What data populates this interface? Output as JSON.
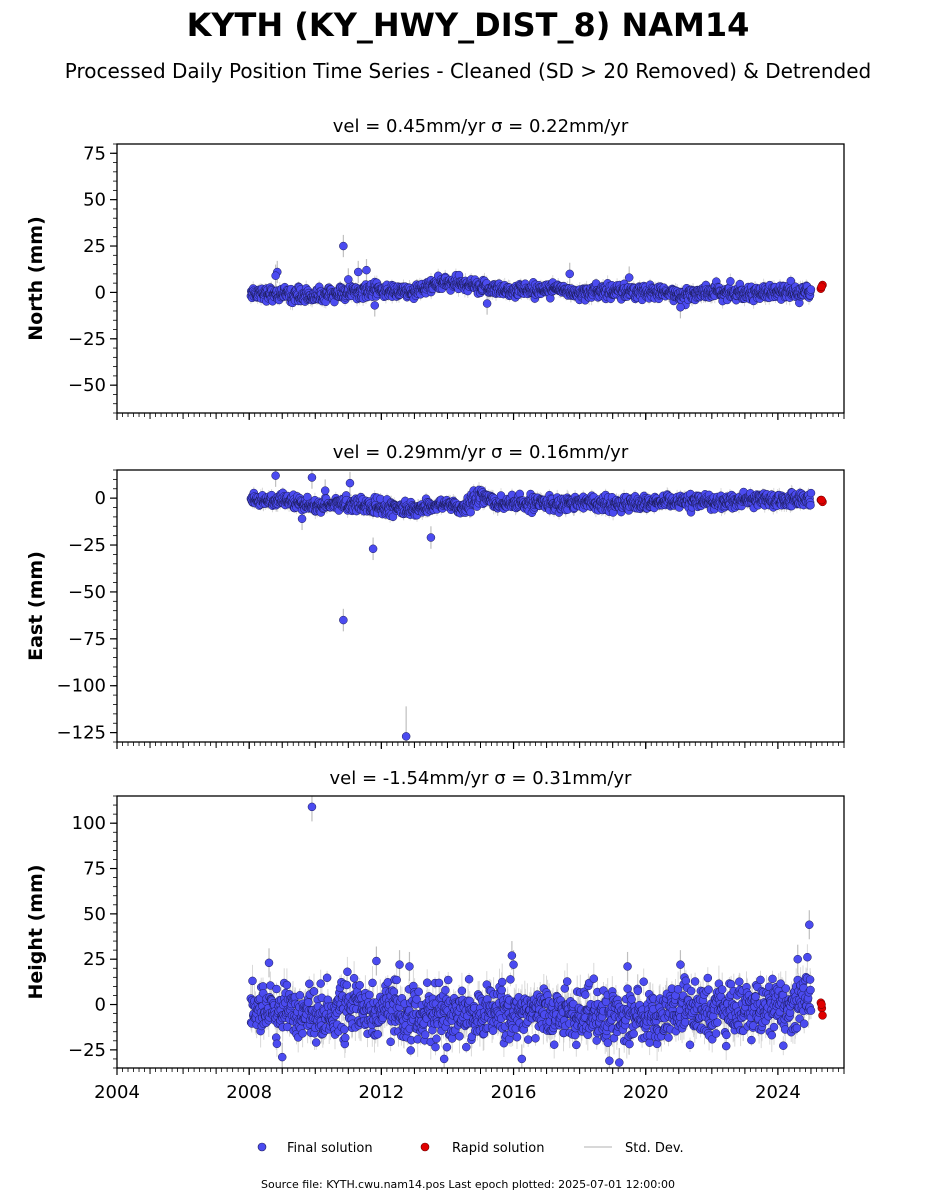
{
  "title": "KYTH (KY_HWY_DIST_8) NAM14",
  "subtitle": "Processed Daily Position Time Series - Cleaned (SD > 20 Removed) & Detrended",
  "footer": "Source file: KYTH.cwu.nam14.pos  Last epoch plotted: 2025-07-01 12:00:00",
  "legend": {
    "final": "Final solution",
    "rapid": "Rapid solution",
    "stddev": "Std. Dev."
  },
  "colors": {
    "final": "#4b4bf0",
    "final_edge": "#1a1a55",
    "rapid": "#e00000",
    "stddev": "#bfbfbf"
  },
  "chart_data": [
    {
      "type": "scatter",
      "id": "north",
      "title": "vel = 0.45mm/yr   σ = 0.22mm/yr",
      "ylabel": "North (mm)",
      "xlim": [
        2004.0,
        2026.0
      ],
      "ylim": [
        -65,
        80
      ],
      "yticks": [
        -50,
        -25,
        0,
        25,
        50,
        75
      ],
      "xticks": [
        2004,
        2008,
        2012,
        2016,
        2020,
        2024
      ],
      "series_range": [
        2008.05,
        2025.0
      ],
      "rapid_range": [
        2025.2,
        2025.45
      ],
      "final_band": [
        [
          2008.0,
          0
        ],
        [
          2009.0,
          -1
        ],
        [
          2010.0,
          -2
        ],
        [
          2011.0,
          0
        ],
        [
          2012.0,
          1
        ],
        [
          2013.0,
          0
        ],
        [
          2013.5,
          4
        ],
        [
          2014.0,
          5
        ],
        [
          2015.0,
          3
        ],
        [
          2016.0,
          1
        ],
        [
          2017.0,
          2
        ],
        [
          2018.0,
          0
        ],
        [
          2019.0,
          1
        ],
        [
          2020.0,
          0
        ],
        [
          2021.0,
          -1
        ],
        [
          2022.0,
          0
        ],
        [
          2023.0,
          0
        ],
        [
          2024.0,
          0
        ],
        [
          2025.0,
          0
        ]
      ],
      "outliers": [
        [
          2008.85,
          11
        ],
        [
          2008.8,
          9
        ],
        [
          2010.85,
          25
        ],
        [
          2011.0,
          7
        ],
        [
          2011.3,
          11
        ],
        [
          2011.55,
          12
        ],
        [
          2011.8,
          -7
        ],
        [
          2017.7,
          10
        ],
        [
          2019.5,
          8
        ],
        [
          2021.05,
          -8
        ],
        [
          2015.2,
          -6
        ]
      ],
      "rapid": [
        [
          2025.3,
          2
        ],
        [
          2025.35,
          4
        ],
        [
          2025.32,
          3
        ]
      ]
    },
    {
      "type": "scatter",
      "id": "east",
      "title": "vel = 0.29mm/yr   σ = 0.16mm/yr",
      "ylabel": "East (mm)",
      "xlim": [
        2004.0,
        2026.0
      ],
      "ylim": [
        -130,
        15
      ],
      "yticks": [
        -125,
        -100,
        -75,
        -50,
        -25,
        0
      ],
      "xticks": [
        2004,
        2008,
        2012,
        2016,
        2020,
        2024
      ],
      "series_range": [
        2008.05,
        2025.0
      ],
      "rapid_range": [
        2025.2,
        2025.45
      ],
      "final_band": [
        [
          2008.0,
          0
        ],
        [
          2009.0,
          -2
        ],
        [
          2010.0,
          -4
        ],
        [
          2011.0,
          -3
        ],
        [
          2012.0,
          -5
        ],
        [
          2013.0,
          -6
        ],
        [
          2014.0,
          -3
        ],
        [
          2014.5,
          -6
        ],
        [
          2015.0,
          2
        ],
        [
          2015.5,
          -3
        ],
        [
          2016.0,
          -3
        ],
        [
          2017.0,
          -3
        ],
        [
          2018.0,
          -2
        ],
        [
          2019.0,
          -3
        ],
        [
          2020.0,
          -3
        ],
        [
          2021.0,
          -2
        ],
        [
          2022.0,
          -2
        ],
        [
          2023.0,
          -1
        ],
        [
          2024.0,
          -1
        ],
        [
          2025.0,
          -1
        ]
      ],
      "outliers": [
        [
          2008.8,
          12
        ],
        [
          2009.9,
          11
        ],
        [
          2010.3,
          4
        ],
        [
          2011.05,
          8
        ],
        [
          2009.6,
          -11
        ],
        [
          2011.75,
          -27
        ],
        [
          2010.85,
          -65
        ],
        [
          2012.75,
          -127
        ],
        [
          2013.5,
          -21
        ]
      ],
      "rapid": [
        [
          2025.3,
          -1
        ],
        [
          2025.35,
          -2
        ],
        [
          2025.32,
          -1
        ]
      ]
    },
    {
      "type": "scatter",
      "id": "height",
      "title": "vel = -1.54mm/yr   σ = 0.31mm/yr",
      "ylabel": "Height (mm)",
      "xlim": [
        2004.0,
        2026.0
      ],
      "ylim": [
        -35,
        115
      ],
      "yticks": [
        -25,
        0,
        25,
        50,
        75,
        100
      ],
      "xticks": [
        2004,
        2008,
        2012,
        2016,
        2020,
        2024
      ],
      "xticklabels": [
        "2004",
        "2008",
        "2012",
        "2016",
        "2020",
        "2024"
      ],
      "series_range": [
        2008.05,
        2025.0
      ],
      "rapid_range": [
        2025.2,
        2025.45
      ],
      "final_band": [
        [
          2008.0,
          -3
        ],
        [
          2009.0,
          -2
        ],
        [
          2010.0,
          -5
        ],
        [
          2011.0,
          -3
        ],
        [
          2012.0,
          -4
        ],
        [
          2013.0,
          -5
        ],
        [
          2014.0,
          -6
        ],
        [
          2015.0,
          -5
        ],
        [
          2016.0,
          -3
        ],
        [
          2017.0,
          -4
        ],
        [
          2018.0,
          -5
        ],
        [
          2019.0,
          -6
        ],
        [
          2020.0,
          -8
        ],
        [
          2021.0,
          -4
        ],
        [
          2022.0,
          -3
        ],
        [
          2023.0,
          -2
        ],
        [
          2024.0,
          -3
        ],
        [
          2025.0,
          5
        ]
      ],
      "outliers": [
        [
          2009.9,
          109
        ],
        [
          2024.95,
          44
        ],
        [
          2015.95,
          27
        ],
        [
          2016.0,
          22
        ],
        [
          2008.6,
          23
        ],
        [
          2012.55,
          22
        ],
        [
          2019.45,
          21
        ],
        [
          2021.05,
          22
        ],
        [
          2012.85,
          21
        ],
        [
          2011.85,
          24
        ],
        [
          2018.9,
          -31
        ],
        [
          2019.2,
          -32
        ],
        [
          2016.25,
          -30
        ],
        [
          2009.0,
          -29
        ],
        [
          2013.9,
          -30
        ],
        [
          2024.6,
          25
        ]
      ],
      "rapid": [
        [
          2025.3,
          1
        ],
        [
          2025.33,
          -2
        ],
        [
          2025.35,
          -6
        ],
        [
          2025.32,
          0
        ]
      ]
    }
  ]
}
